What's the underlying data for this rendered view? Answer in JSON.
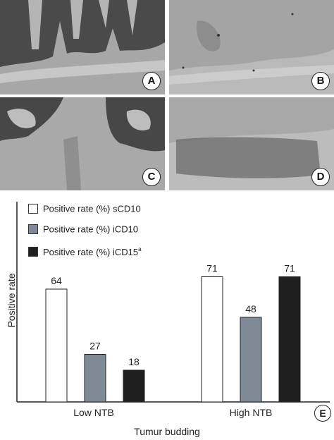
{
  "panels": [
    {
      "id": "A",
      "label": "A"
    },
    {
      "id": "B",
      "label": "B"
    },
    {
      "id": "C",
      "label": "C"
    },
    {
      "id": "D",
      "label": "D"
    }
  ],
  "chart_panel_label": "E",
  "chart_data": {
    "type": "bar",
    "categories": [
      "Low NTB",
      "High NTB"
    ],
    "series": [
      {
        "name": "Positive rate (%) sCD10",
        "values": [
          64,
          71
        ],
        "color": "#ffffff"
      },
      {
        "name": "Positive rate (%) iCD10",
        "values": [
          27,
          48
        ],
        "color": "#7f8a96"
      },
      {
        "name": "Positive rate (%) iCD15",
        "name_superscript": "a",
        "values": [
          18,
          71
        ],
        "color": "#1f1f1f"
      }
    ],
    "xlabel": "Tumur budding",
    "ylabel": "Positive rate",
    "ylim": [
      0,
      100
    ],
    "legend_position": "top-left",
    "grid": false
  }
}
